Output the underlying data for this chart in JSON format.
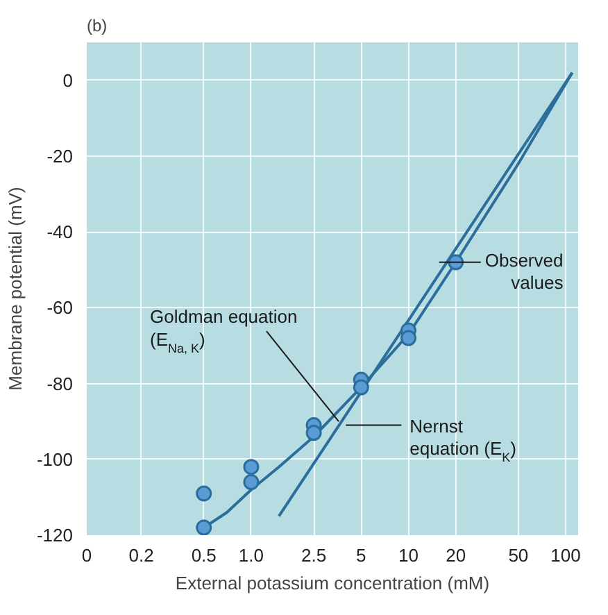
{
  "chart_data": {
    "type": "line",
    "title": "(b)",
    "xlabel": "External potassium concentration (mM)",
    "ylabel": "Membrane potential (mV)",
    "log": "x",
    "xlim": [
      0.09,
      120
    ],
    "xticks": [
      {
        "value": 0.09,
        "label": "0"
      },
      0.2,
      0.5,
      {
        "value": 1,
        "label": "1.0"
      },
      2.5,
      5,
      10,
      20,
      50,
      100
    ],
    "ylim": [
      -120,
      10
    ],
    "yticks": [
      -120,
      -100,
      -80,
      -60,
      -40,
      -20,
      0
    ],
    "grid": true,
    "series": [
      {
        "color": "#2b6e9c",
        "x": [
          0.5,
          0.7,
          1,
          1.5,
          2.5,
          5,
          10,
          20,
          50,
          110
        ],
        "values": [
          -118,
          -114,
          -108,
          -102,
          -94,
          -81,
          -67,
          -48,
          -22,
          2
        ]
      },
      {
        "color": "#2b6e9c",
        "x": [
          1.5,
          110
        ],
        "values": [
          -115,
          2
        ]
      },
      {
        "type": "scatter",
        "color": "#5b9bd5",
        "marker": "circle",
        "x": [
          0.5,
          0.5,
          1,
          1,
          2.5,
          2.5,
          5,
          5,
          10,
          10,
          20
        ],
        "values": [
          -109,
          -118,
          -102,
          -106,
          -91,
          -93,
          -79,
          -81,
          -66,
          -68,
          -48
        ]
      }
    ],
    "annotations": [
      {
        "text": "Observed\nvalues",
        "x": 20,
        "y": -48
      },
      {
        "text": "Goldman equation\n(E$_{Na, K}$)",
        "x": 3.6,
        "y": -90
      },
      {
        "text": "Nernst\nequation (E$_{K}$)",
        "x": 4,
        "y": -91
      }
    ]
  }
}
